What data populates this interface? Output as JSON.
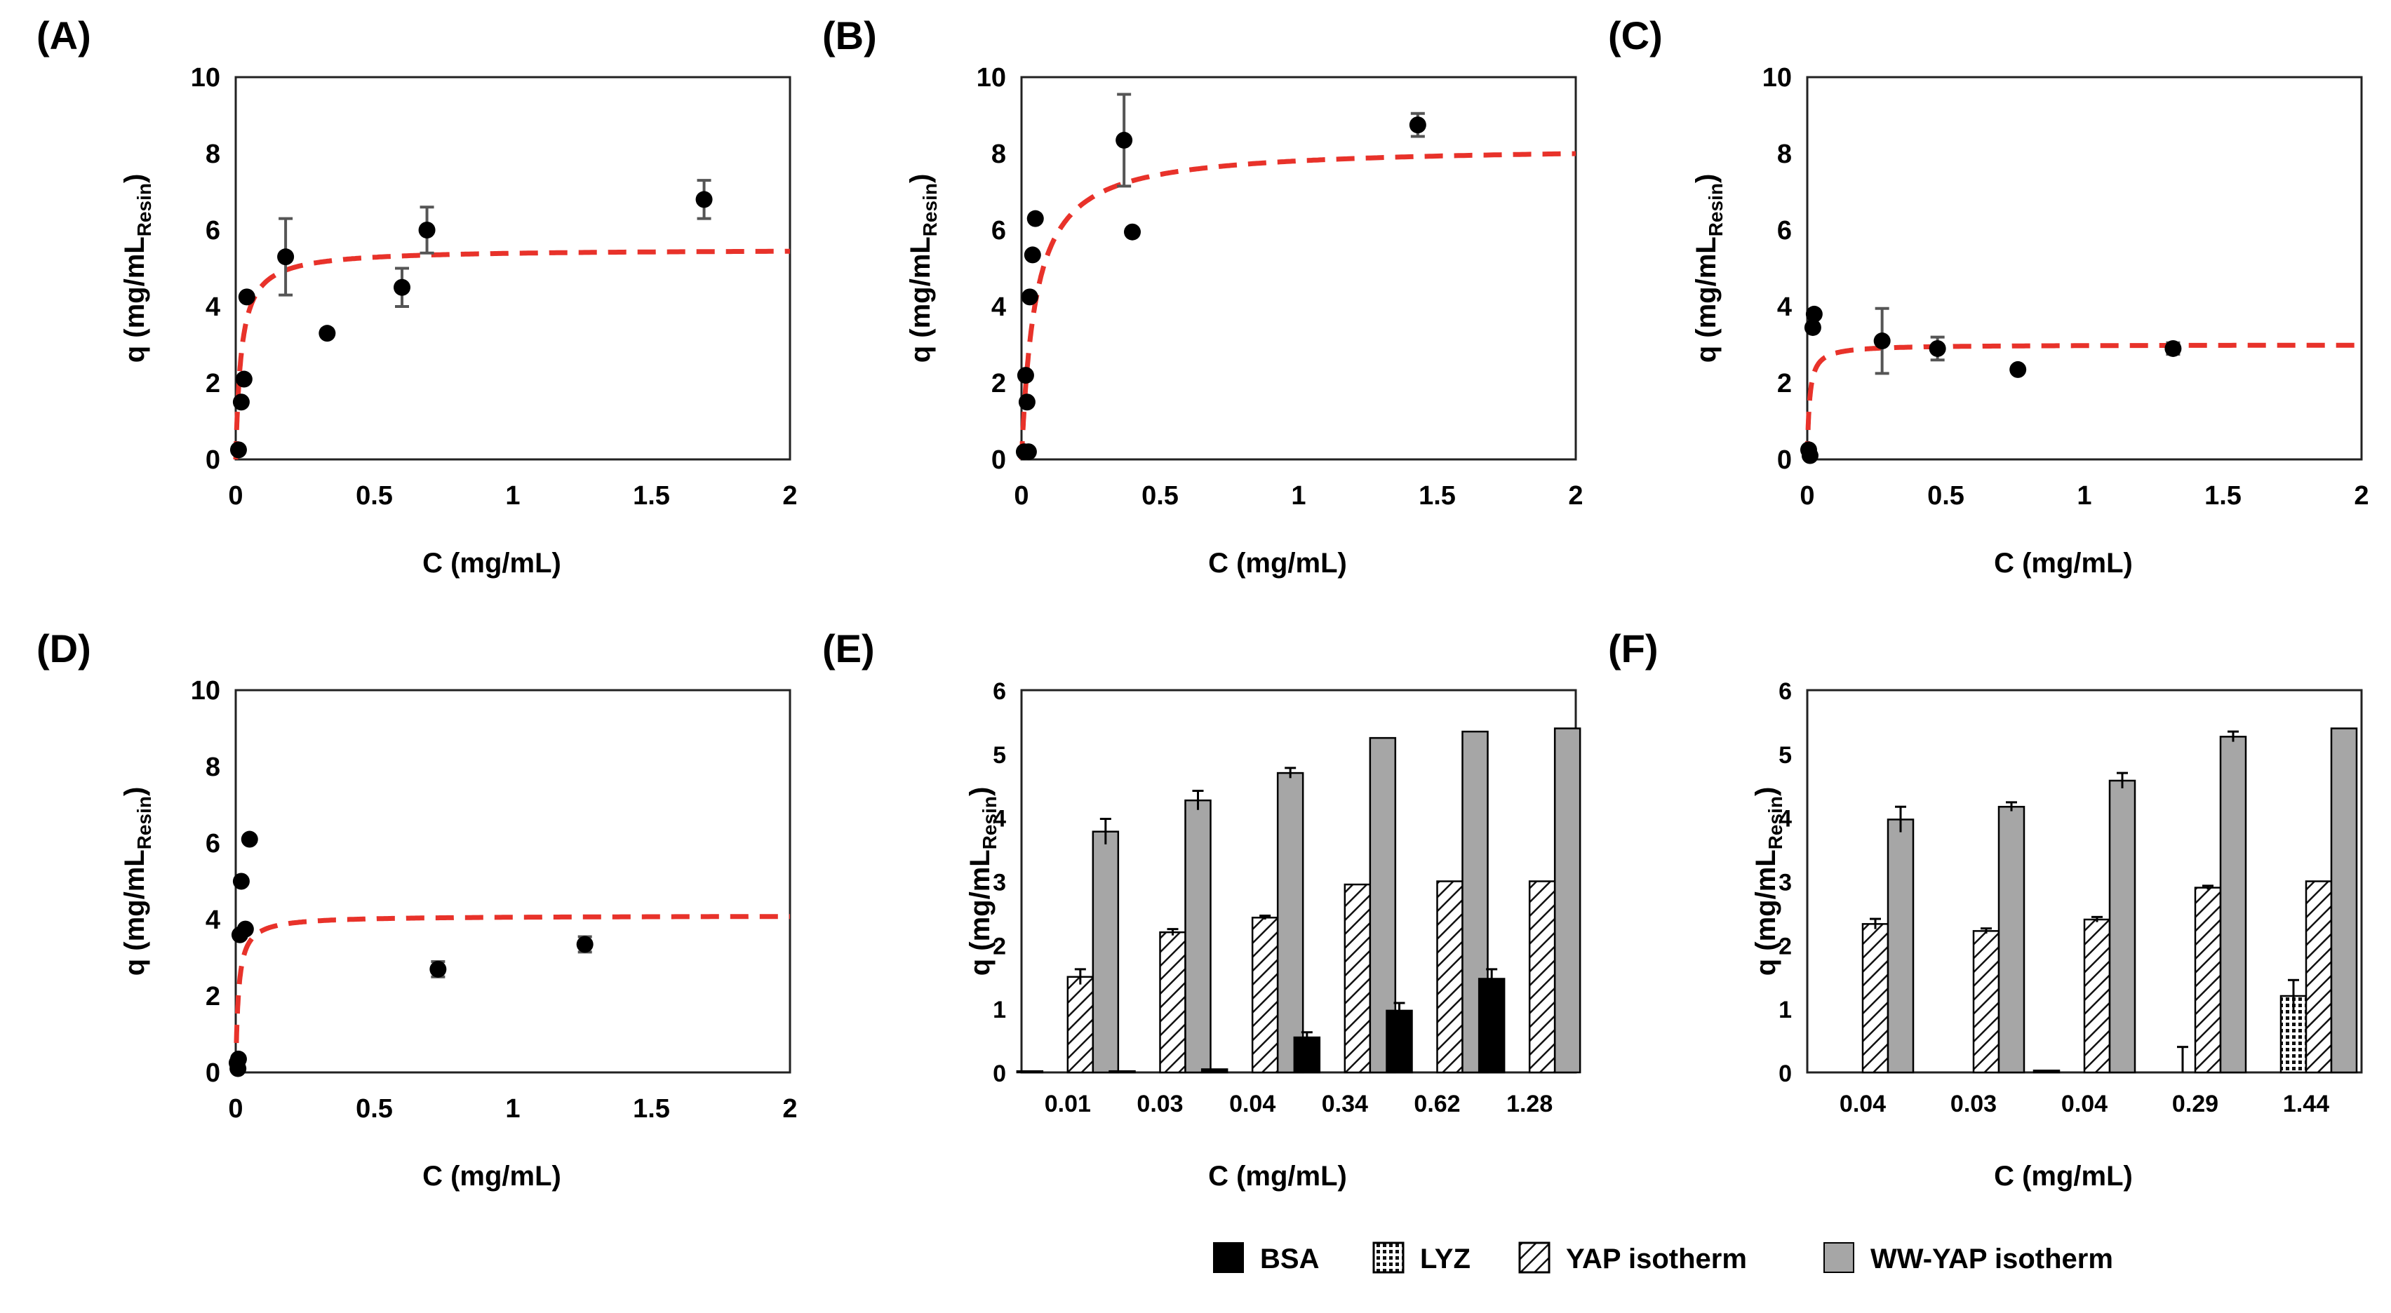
{
  "colors": {
    "plot_bg": "#ffffff",
    "axis": "#222222",
    "fit_line": "#e8322a",
    "marker": "#000000",
    "error_bar": "#555555",
    "bsa": "#000000",
    "lyz": "#ffffff",
    "yap": "#ffffff",
    "wwyap": "#a6a6a6"
  },
  "legend": {
    "items": [
      {
        "key": "bsa",
        "label": "BSA"
      },
      {
        "key": "lyz",
        "label": "LYZ"
      },
      {
        "key": "yap",
        "label": "YAP isotherm"
      },
      {
        "key": "wwyap",
        "label": "WW-YAP isotherm"
      }
    ]
  },
  "chart_data": [
    {
      "panel": "(A)",
      "type": "scatter",
      "xlabel": "C (mg/mL)",
      "ylabel": "q (mg/mL",
      "ylabel_sub": "Resin",
      "ylabel_close": ")",
      "xlim": [
        0,
        2
      ],
      "ylim": [
        0,
        10
      ],
      "xticks": [
        0,
        0.5,
        1,
        1.5,
        2
      ],
      "xtick_labels": [
        "0",
        "0.5",
        "1",
        "1.5",
        "2"
      ],
      "yticks": [
        0,
        2,
        4,
        6,
        8,
        10
      ],
      "ytick_labels": [
        "0",
        "2",
        "4",
        "6",
        "8",
        "10"
      ],
      "points": [
        {
          "x": 0.01,
          "y": 0.25,
          "err": 0
        },
        {
          "x": 0.02,
          "y": 1.5,
          "err": 0
        },
        {
          "x": 0.03,
          "y": 2.1,
          "err": 0
        },
        {
          "x": 0.04,
          "y": 4.25,
          "err": 0
        },
        {
          "x": 0.18,
          "y": 5.3,
          "err": 1.0
        },
        {
          "x": 0.33,
          "y": 3.3,
          "err": 0
        },
        {
          "x": 0.6,
          "y": 4.5,
          "err": 0.5
        },
        {
          "x": 0.69,
          "y": 6.0,
          "err": 0.6
        },
        {
          "x": 1.69,
          "y": 6.8,
          "err": 0.5
        }
      ],
      "fit": {
        "model": "langmuir",
        "qmax": 5.5,
        "kd": 0.02
      }
    },
    {
      "panel": "(B)",
      "type": "scatter",
      "xlabel": "C (mg/mL)",
      "ylabel": "q (mg/mL",
      "ylabel_sub": "Resin",
      "ylabel_close": ")",
      "xlim": [
        0,
        2
      ],
      "ylim": [
        0,
        10
      ],
      "xticks": [
        0,
        0.5,
        1,
        1.5,
        2
      ],
      "xtick_labels": [
        "0",
        "0.5",
        "1",
        "1.5",
        "2"
      ],
      "yticks": [
        0,
        2,
        4,
        6,
        8,
        10
      ],
      "ytick_labels": [
        "0",
        "2",
        "4",
        "6",
        "8",
        "10"
      ],
      "points": [
        {
          "x": 0.01,
          "y": 0.2,
          "err": 0
        },
        {
          "x": 0.015,
          "y": 2.2,
          "err": 0
        },
        {
          "x": 0.02,
          "y": 1.5,
          "err": 0
        },
        {
          "x": 0.025,
          "y": 0.2,
          "err": 0
        },
        {
          "x": 0.03,
          "y": 4.25,
          "err": 0
        },
        {
          "x": 0.04,
          "y": 5.35,
          "err": 0
        },
        {
          "x": 0.05,
          "y": 6.3,
          "err": 0
        },
        {
          "x": 0.37,
          "y": 8.35,
          "err": 1.2
        },
        {
          "x": 0.4,
          "y": 5.95,
          "err": 0
        },
        {
          "x": 1.43,
          "y": 8.75,
          "err": 0.3
        }
      ],
      "fit": {
        "model": "langmuir",
        "qmax": 8.2,
        "kd": 0.05
      }
    },
    {
      "panel": "(C)",
      "type": "scatter",
      "xlabel": "C (mg/mL)",
      "ylabel": "q (mg/mL",
      "ylabel_sub": "Resin",
      "ylabel_close": ")",
      "xlim": [
        0,
        2
      ],
      "ylim": [
        0,
        10
      ],
      "xticks": [
        0,
        0.5,
        1,
        1.5,
        2
      ],
      "xtick_labels": [
        "0",
        "0.5",
        "1",
        "1.5",
        "2"
      ],
      "yticks": [
        0,
        2,
        4,
        6,
        8,
        10
      ],
      "ytick_labels": [
        "0",
        "2",
        "4",
        "6",
        "8",
        "10"
      ],
      "points": [
        {
          "x": 0.005,
          "y": 0.25,
          "err": 0
        },
        {
          "x": 0.01,
          "y": 0.1,
          "err": 0
        },
        {
          "x": 0.02,
          "y": 3.45,
          "err": 0
        },
        {
          "x": 0.025,
          "y": 3.8,
          "err": 0
        },
        {
          "x": 0.27,
          "y": 3.1,
          "err": 0.85
        },
        {
          "x": 0.47,
          "y": 2.9,
          "err": 0.3
        },
        {
          "x": 0.76,
          "y": 2.35,
          "err": 0
        },
        {
          "x": 1.32,
          "y": 2.9,
          "err": 0.15
        }
      ],
      "fit": {
        "model": "langmuir",
        "qmax": 3.0,
        "kd": 0.008
      }
    },
    {
      "panel": "(D)",
      "type": "scatter",
      "xlabel": "C (mg/mL)",
      "ylabel": "q (mg/mL",
      "ylabel_sub": "Resin",
      "ylabel_close": ")",
      "xlim": [
        0,
        2
      ],
      "ylim": [
        0,
        10
      ],
      "xticks": [
        0,
        0.5,
        1,
        1.5,
        2
      ],
      "xtick_labels": [
        "0",
        "0.5",
        "1",
        "1.5",
        "2"
      ],
      "yticks": [
        0,
        2,
        4,
        6,
        8,
        10
      ],
      "ytick_labels": [
        "0",
        "2",
        "4",
        "6",
        "8",
        "10"
      ],
      "points": [
        {
          "x": 0.005,
          "y": 0.25,
          "err": 0
        },
        {
          "x": 0.008,
          "y": 0.1,
          "err": 0
        },
        {
          "x": 0.01,
          "y": 0.35,
          "err": 0
        },
        {
          "x": 0.015,
          "y": 3.6,
          "err": 0
        },
        {
          "x": 0.02,
          "y": 5.0,
          "err": 0
        },
        {
          "x": 0.035,
          "y": 3.75,
          "err": 0
        },
        {
          "x": 0.05,
          "y": 6.1,
          "err": 0
        },
        {
          "x": 0.73,
          "y": 2.7,
          "err": 0.2
        },
        {
          "x": 1.26,
          "y": 3.35,
          "err": 0.2
        }
      ],
      "fit": {
        "model": "langmuir",
        "qmax": 4.1,
        "kd": 0.01
      }
    },
    {
      "panel": "(E)",
      "type": "bar",
      "xlabel": "C (mg/mL)",
      "ylabel": "q (mg/mL",
      "ylabel_sub": "Resin",
      "ylabel_close": ")",
      "ylim": [
        0,
        6
      ],
      "yticks": [
        0,
        1,
        2,
        3,
        4,
        5,
        6
      ],
      "ytick_labels": [
        "0",
        "1",
        "2",
        "3",
        "4",
        "5",
        "6"
      ],
      "categories": [
        "0.01",
        "0.03",
        "0.04",
        "0.34",
        "0.62",
        "1.28"
      ],
      "series": [
        {
          "key": "bsa",
          "name": "BSA",
          "values": [
            0.02,
            0.02,
            0.05,
            0.55,
            0.97,
            1.47
          ],
          "errors": [
            0,
            0,
            0,
            0.08,
            0.12,
            0.15
          ]
        },
        {
          "key": "lyz",
          "name": "LYZ",
          "values": [
            0,
            0,
            0,
            0,
            0,
            0
          ],
          "errors": [
            0,
            0,
            0,
            0,
            0,
            0
          ]
        },
        {
          "key": "yap",
          "name": "YAP isotherm",
          "values": [
            1.5,
            2.2,
            2.43,
            2.95,
            3.0,
            3.0
          ],
          "errors": [
            0.12,
            0.05,
            0.03,
            0,
            0,
            0
          ]
        },
        {
          "key": "wwyap",
          "name": "WW-YAP isotherm",
          "values": [
            3.78,
            4.27,
            4.7,
            5.25,
            5.35,
            5.4
          ],
          "errors": [
            0.2,
            0.15,
            0.08,
            0,
            0,
            0
          ]
        }
      ]
    },
    {
      "panel": "(F)",
      "type": "bar",
      "xlabel": "C (mg/mL)",
      "ylabel": "q (mg/mL",
      "ylabel_sub": "Resin",
      "ylabel_close": ")",
      "ylim": [
        0,
        6
      ],
      "yticks": [
        0,
        1,
        2,
        3,
        4,
        5,
        6
      ],
      "ytick_labels": [
        "0",
        "1",
        "2",
        "3",
        "4",
        "5",
        "6"
      ],
      "categories": [
        "0.04",
        "0.03",
        "0.04",
        "0.29",
        "1.44"
      ],
      "series": [
        {
          "key": "bsa",
          "name": "BSA",
          "values": [
            0,
            0,
            0.03,
            0,
            0
          ],
          "errors": [
            0,
            0,
            0,
            0,
            0
          ]
        },
        {
          "key": "lyz",
          "name": "LYZ",
          "values": [
            0,
            0,
            0,
            0,
            1.2
          ],
          "errors": [
            0,
            0,
            0,
            0.4,
            0.25
          ]
        },
        {
          "key": "yap",
          "name": "YAP isotherm",
          "values": [
            2.33,
            2.22,
            2.4,
            2.9,
            3.0
          ],
          "errors": [
            0.08,
            0.04,
            0.04,
            0.03,
            0
          ]
        },
        {
          "key": "wwyap",
          "name": "WW-YAP isotherm",
          "values": [
            3.97,
            4.17,
            4.58,
            5.27,
            5.4
          ],
          "errors": [
            0.2,
            0.07,
            0.12,
            0.08,
            0
          ]
        }
      ]
    }
  ]
}
